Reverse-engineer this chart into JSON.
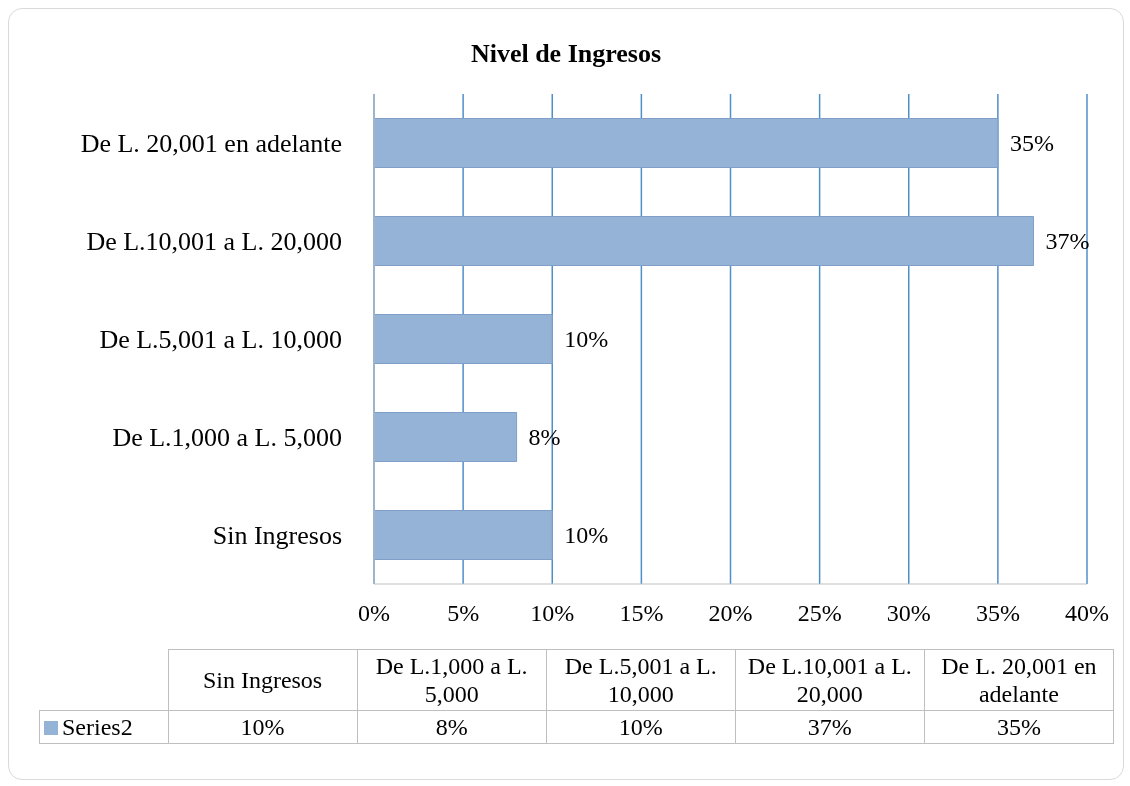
{
  "chart_data": {
    "type": "bar",
    "orientation": "horizontal",
    "title": "Nivel de Ingresos",
    "categories": [
      "De L. 20,001 en adelante",
      "De L.10,001 a L. 20,000",
      "De L.5,001 a L. 10,000",
      "De L.1,000 a L. 5,000",
      "Sin Ingresos"
    ],
    "series": [
      {
        "name": "Series2",
        "color": "#95b3d7",
        "values": [
          35,
          37,
          10,
          8,
          10
        ],
        "value_labels": [
          "35%",
          "37%",
          "10%",
          "8%",
          "10%"
        ]
      }
    ],
    "xlim": [
      0,
      40
    ],
    "xticks": [
      {
        "value": 0,
        "label": "0%"
      },
      {
        "value": 5,
        "label": "5%"
      },
      {
        "value": 10,
        "label": "10%"
      },
      {
        "value": 15,
        "label": "15%"
      },
      {
        "value": 20,
        "label": "20%"
      },
      {
        "value": 25,
        "label": "25%"
      },
      {
        "value": 30,
        "label": "30%"
      },
      {
        "value": 35,
        "label": "35%"
      },
      {
        "value": 40,
        "label": "40%"
      }
    ],
    "grid": "x",
    "legend": "bottom"
  }
}
